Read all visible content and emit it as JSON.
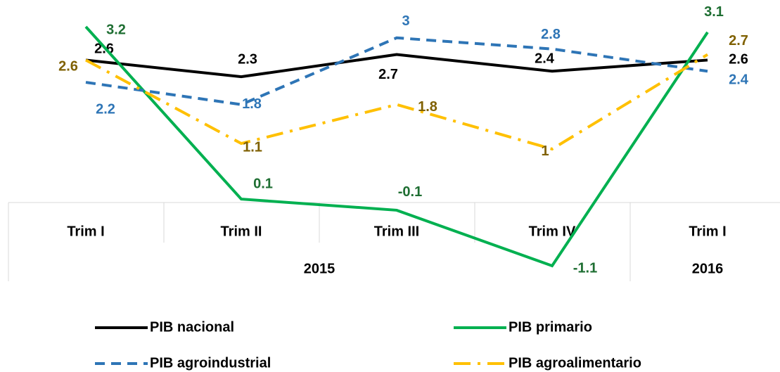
{
  "chart_data": {
    "type": "line",
    "categories": [
      "Trim I",
      "Trim II",
      "Trim III",
      "Trim IV",
      "Trim I"
    ],
    "groups": [
      "2015",
      "2016"
    ],
    "series": [
      {
        "name": "PIB nacional",
        "color": "#000000",
        "values": [
          2.6,
          2.3,
          2.7,
          2.4,
          2.6
        ]
      },
      {
        "name": "PIB primario",
        "color": "#00b050",
        "values": [
          3.2,
          0.1,
          -0.1,
          -1.1,
          3.1
        ]
      },
      {
        "name": "PIB agroindustrial",
        "color": "#2e75b6",
        "values": [
          2.2,
          1.8,
          3.0,
          2.8,
          2.4
        ]
      },
      {
        "name": "PIB agroalimentario",
        "color": "#ffc000",
        "values": [
          2.6,
          1.1,
          1.8,
          1.0,
          2.7
        ]
      }
    ]
  }
}
